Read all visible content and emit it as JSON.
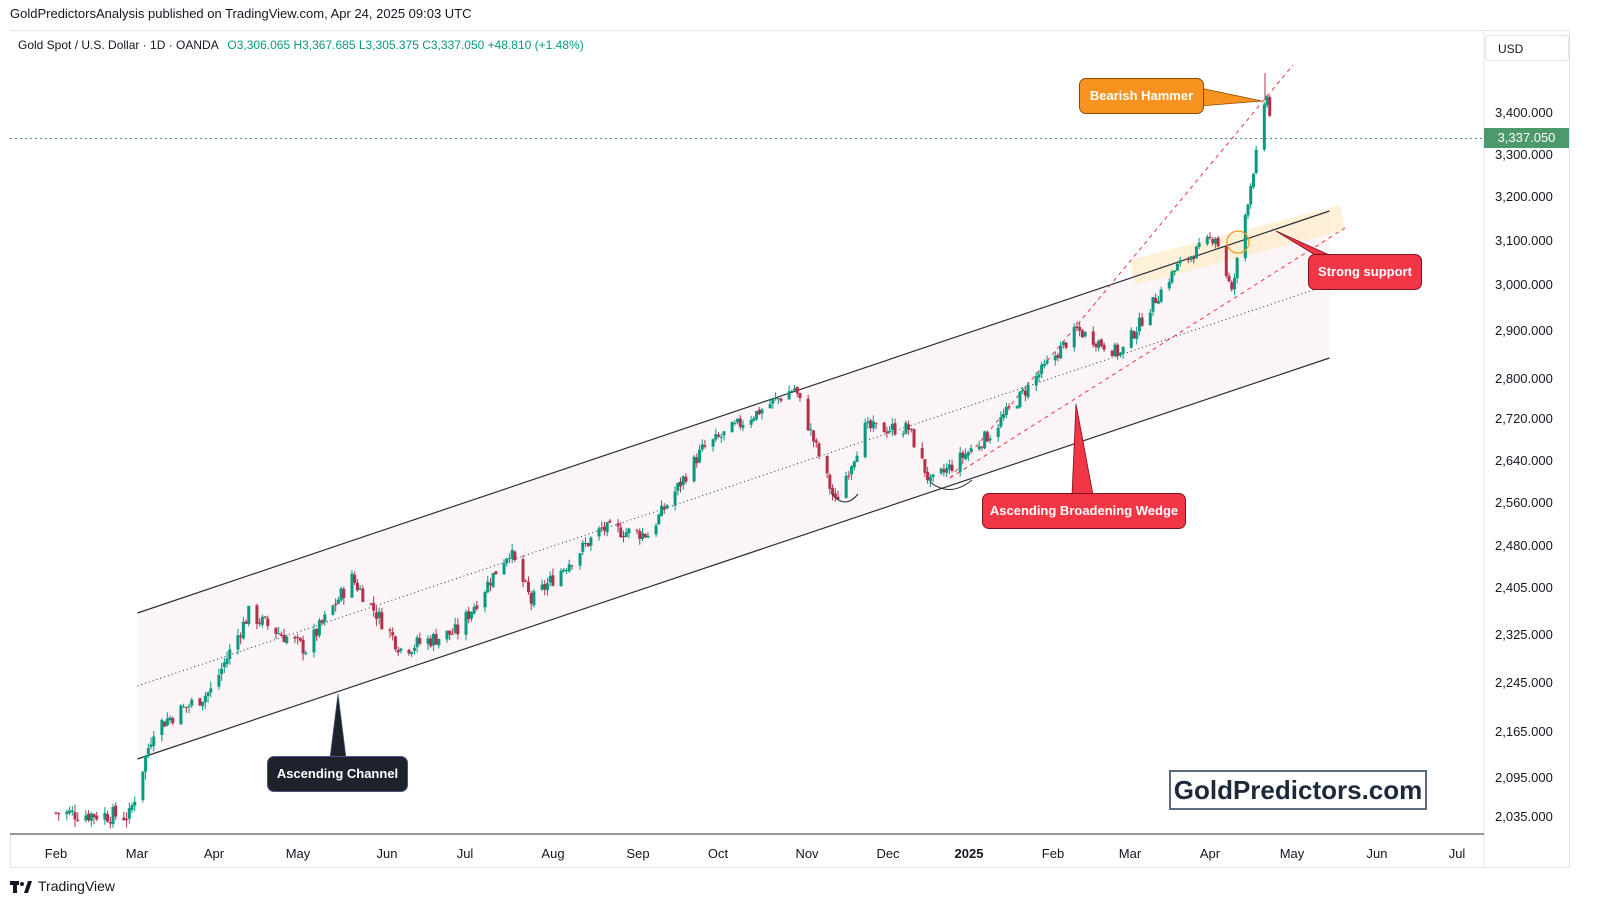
{
  "header": {
    "caption": "GoldPredictorsAnalysis published on TradingView.com, Apr 24, 2025 09:03 UTC"
  },
  "symbol": {
    "name": "Gold Spot / U.S. Dollar · 1D · OANDA",
    "ohlc": "O3,306.065  H3,367.685  L3,305.375  C3,337.050  +48.810 (+1.48%)"
  },
  "price_axis": {
    "currency": "USD",
    "last_price": "3,337.050",
    "tick_labels": [
      "3,400.000",
      "3,300.000",
      "3,200.000",
      "3,100.000",
      "3,000.000",
      "2,900.000",
      "2,800.000",
      "2,720.000",
      "2,640.000",
      "2,560.000",
      "2,480.000",
      "2,405.000",
      "2,325.000",
      "2,245.000",
      "2,165.000",
      "2,095.000",
      "2,035.000"
    ]
  },
  "callouts": {
    "bearish_hammer": "Bearish Hammer",
    "strong_support": "Strong support",
    "wedge": "Ascending Broadening Wedge",
    "channel": "Ascending Channel"
  },
  "watermark": "GoldPredictors.com",
  "footer": {
    "brand": "TradingView"
  },
  "colors": {
    "up": "#089981",
    "down": "#b2314a",
    "channel": "#2a2e39",
    "wedge": "#f23645",
    "orange": "#f7931e"
  },
  "chart_data": {
    "type": "candlestick",
    "x_labels": [
      "Feb",
      "Mar",
      "Apr",
      "May",
      "Jun",
      "Jul",
      "Aug",
      "Sep",
      "Oct",
      "Nov",
      "Dec",
      "2025",
      "Feb",
      "Mar",
      "Apr",
      "May",
      "Jun",
      "Jul"
    ],
    "y_ticks": [
      3400,
      3300,
      3200,
      3100,
      3000,
      2900,
      2800,
      2720,
      2640,
      2560,
      2480,
      2405,
      2325,
      2245,
      2165,
      2095,
      2035
    ],
    "last_price": 3337.05,
    "anchors": [
      {
        "date": "2024-02-01",
        "close": 2040
      },
      {
        "date": "2024-02-28",
        "close": 2035
      },
      {
        "date": "2024-03-08",
        "close": 2170
      },
      {
        "date": "2024-03-29",
        "close": 2230
      },
      {
        "date": "2024-04-12",
        "close": 2360
      },
      {
        "date": "2024-04-22",
        "close": 2330
      },
      {
        "date": "2024-05-03",
        "close": 2300
      },
      {
        "date": "2024-05-20",
        "close": 2420
      },
      {
        "date": "2024-06-07",
        "close": 2300
      },
      {
        "date": "2024-06-28",
        "close": 2330
      },
      {
        "date": "2024-07-17",
        "close": 2470
      },
      {
        "date": "2024-07-25",
        "close": 2380
      },
      {
        "date": "2024-08-20",
        "close": 2510
      },
      {
        "date": "2024-09-06",
        "close": 2500
      },
      {
        "date": "2024-09-26",
        "close": 2660
      },
      {
        "date": "2024-10-30",
        "close": 2780
      },
      {
        "date": "2024-11-14",
        "close": 2560
      },
      {
        "date": "2024-11-25",
        "close": 2700
      },
      {
        "date": "2024-12-11",
        "close": 2700
      },
      {
        "date": "2024-12-19",
        "close": 2595
      },
      {
        "date": "2025-01-10",
        "close": 2690
      },
      {
        "date": "2025-02-11",
        "close": 2900
      },
      {
        "date": "2025-02-27",
        "close": 2850
      },
      {
        "date": "2025-03-20",
        "close": 3040
      },
      {
        "date": "2025-04-03",
        "close": 3110
      },
      {
        "date": "2025-04-09",
        "close": 2980
      },
      {
        "date": "2025-04-22",
        "close": 3440
      },
      {
        "date": "2025-04-24",
        "close": 3337
      }
    ]
  }
}
